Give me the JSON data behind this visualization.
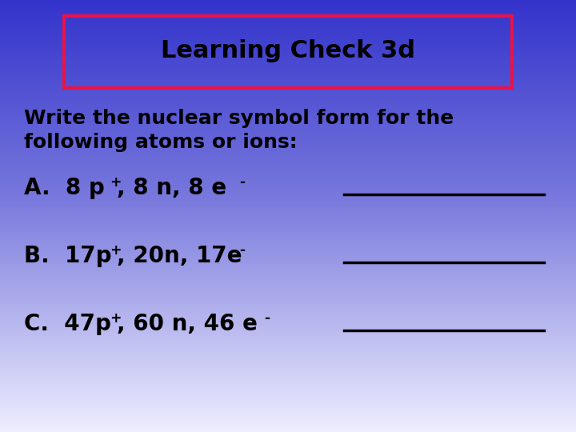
{
  "title": "Learning Check 3d",
  "subtitle_line1": "Write the nuclear symbol form for the",
  "subtitle_line2": "following atoms or ions:",
  "item_A": "A.  8 p",
  "item_B": "B.  17p",
  "item_C": "C.  47p",
  "suffix_A": ", 8 n, 8 e",
  "suffix_B": ", 20n, 17e",
  "suffix_C": ", 60 n, 46 e",
  "bg_top_color": "#3333CC",
  "bg_mid_color": "#6666CC",
  "bg_bottom_color": "#DDDDFF",
  "title_box_edge": "#EE1144",
  "text_color": "#000000",
  "title_color": "#000000",
  "line_color": "#000000",
  "title_fontsize": 22,
  "subtitle_fontsize": 18,
  "item_fontsize": 20
}
